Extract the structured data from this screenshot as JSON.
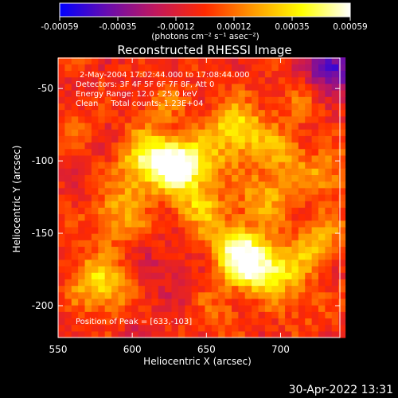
{
  "chart_data": {
    "type": "heatmap",
    "title": "Reconstructed RHESSI Image",
    "xlabel": "Heliocentric X (arcsec)",
    "ylabel": "Heliocentric Y (arcsec)",
    "xlim": [
      550,
      740
    ],
    "ylim": [
      -222,
      -29
    ],
    "xticks": [
      550,
      600,
      650,
      700
    ],
    "yticks": [
      -50,
      -100,
      -150,
      -200
    ],
    "colorbar": {
      "range": [
        -0.00059,
        0.00059
      ],
      "ticks": [
        "-0.00059",
        "-0.00035",
        "-0.00012",
        "0.00012",
        "0.00035",
        "0.00059"
      ],
      "label": "(photons cm⁻² s⁻¹ asec⁻²)",
      "colormap": [
        "#0000ff",
        "#6a0dad",
        "#c2185b",
        "#ff2a00",
        "#ff9a00",
        "#ffff00",
        "#ffffff"
      ]
    },
    "annotations": [
      "2-May-2004 17:02:44.000 to 17:08:44.000",
      "Detectors: 3F 4F 5F 6F 7F 8F, Att 0",
      "Energy Range: 12.0 - 25.0 keV",
      "Clean     Total counts: 1.23E+04"
    ],
    "peak_label": "Position of Peak = [633,-103]",
    "features": [
      {
        "x": 630,
        "y": -103,
        "value": 0.00059
      },
      {
        "x": 612,
        "y": -96,
        "value": 0.0004
      },
      {
        "x": 680,
        "y": -172,
        "value": 0.00052
      },
      {
        "x": 668,
        "y": -158,
        "value": 0.0004
      },
      {
        "x": 700,
        "y": -175,
        "value": 0.00032
      },
      {
        "x": 725,
        "y": -155,
        "value": 0.00028
      },
      {
        "x": 645,
        "y": -130,
        "value": 0.0003
      },
      {
        "x": 690,
        "y": -125,
        "value": 0.00028
      },
      {
        "x": 590,
        "y": -140,
        "value": 0.00026
      },
      {
        "x": 575,
        "y": -180,
        "value": 0.0003
      },
      {
        "x": 585,
        "y": -195,
        "value": 0.0002
      },
      {
        "x": 700,
        "y": -95,
        "value": 0.00022
      },
      {
        "x": 730,
        "y": -110,
        "value": 0.00024
      },
      {
        "x": 620,
        "y": -60,
        "value": 0.00014
      },
      {
        "x": 665,
        "y": -70,
        "value": 0.0002
      },
      {
        "x": 675,
        "y": -82,
        "value": 0.0003
      },
      {
        "x": 710,
        "y": -60,
        "value": 0.00012
      },
      {
        "x": 650,
        "y": -100,
        "value": 0.00022
      },
      {
        "x": 600,
        "y": -115,
        "value": 0.00018
      },
      {
        "x": 660,
        "y": -205,
        "value": 0.00012
      },
      {
        "x": 715,
        "y": -200,
        "value": 0.00012
      },
      {
        "x": 560,
        "y": -75,
        "value": 8e-05
      },
      {
        "x": 620,
        "y": -175,
        "value": -0.0001
      },
      {
        "x": 600,
        "y": -210,
        "value": -8e-05
      },
      {
        "x": 735,
        "y": -35,
        "value": -0.00045
      }
    ]
  },
  "footer_timestamp": "30-Apr-2022 13:31"
}
